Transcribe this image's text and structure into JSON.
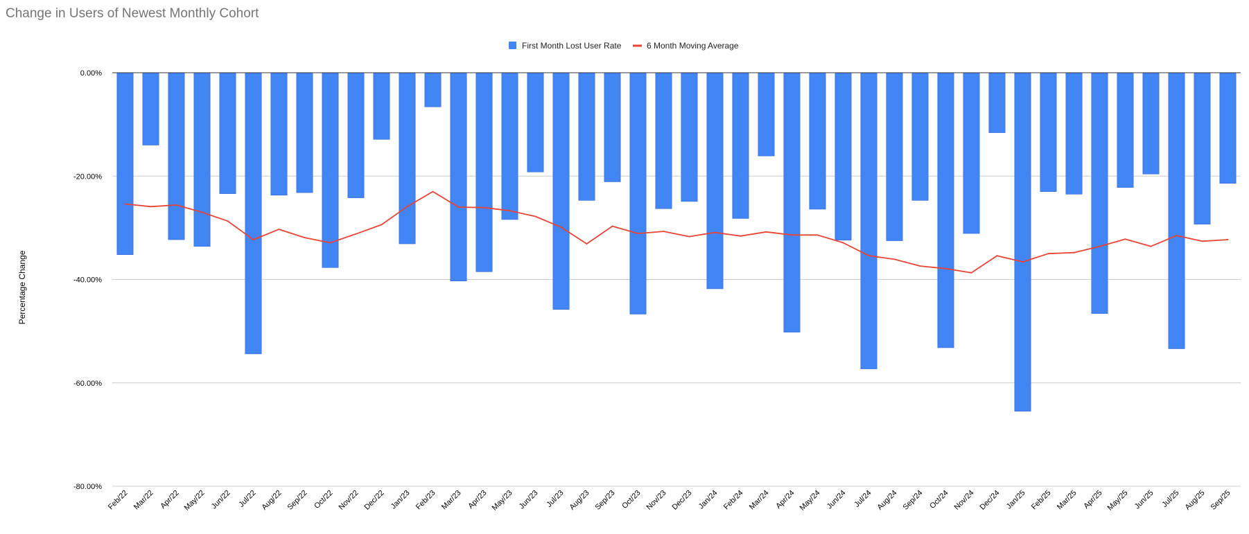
{
  "chart_data": {
    "type": "bar",
    "title": "Change in Users of Newest Monthly Cohort",
    "xlabel": "",
    "ylabel": "Percentage Change",
    "ylim": [
      -80,
      0
    ],
    "yticks": [
      0,
      -20,
      -40,
      -60,
      -80
    ],
    "ytick_labels": [
      "0.00%",
      "-20.00%",
      "-40.00%",
      "-60.00%",
      "-80.00%"
    ],
    "grid": true,
    "legend_position": "top-center",
    "categories": [
      "Feb/22",
      "Mar/22",
      "Apr/22",
      "May/22",
      "Jun/22",
      "Jul/22",
      "Aug/22",
      "Sep/22",
      "Oct/22",
      "Nov/22",
      "Dec/22",
      "Jan/23",
      "Feb/23",
      "Mar/23",
      "Apr/23",
      "May/23",
      "Jun/23",
      "Jul/23",
      "Aug/23",
      "Sep/23",
      "Oct/23",
      "Nov/23",
      "Dec/23",
      "Jan/24",
      "Feb/24",
      "Mar/24",
      "Apr/24",
      "May/24",
      "Jun/24",
      "Jul/24",
      "Aug/24",
      "Sep/24",
      "Oct/24",
      "Nov/24",
      "Dec/24",
      "Jan/25",
      "Feb/25",
      "Mar/25",
      "Apr/25",
      "May/25",
      "Jun/25",
      "Jul/25",
      "Aug/25",
      "Sep/25"
    ],
    "series": [
      {
        "name": "First Month Lost User Rate",
        "kind": "bar",
        "color": "#4285f4",
        "values": [
          -35.2,
          -14.0,
          -32.3,
          -33.6,
          -23.4,
          -54.4,
          -23.7,
          -23.2,
          -37.7,
          -24.2,
          -12.9,
          -33.1,
          -6.6,
          -40.3,
          -38.5,
          -28.4,
          -19.2,
          -45.8,
          -24.7,
          -21.1,
          -46.7,
          -26.3,
          -24.9,
          -41.8,
          -28.2,
          -16.1,
          -50.2,
          -26.4,
          -32.4,
          -57.3,
          -32.5,
          -24.7,
          -53.2,
          -31.1,
          -11.6,
          -65.5,
          -23.0,
          -23.5,
          -46.6,
          -22.2,
          -19.6,
          -53.4,
          -29.3,
          -21.4
        ]
      },
      {
        "name": "6 Month Moving Average",
        "kind": "line",
        "color": "#ea4335",
        "values": [
          -25.4,
          -25.9,
          -25.6,
          -27.0,
          -28.7,
          -32.3,
          -30.3,
          -31.9,
          -32.9,
          -31.2,
          -29.4,
          -25.9,
          -23.0,
          -26.0,
          -26.1,
          -26.7,
          -27.8,
          -29.9,
          -33.1,
          -29.7,
          -31.1,
          -30.7,
          -31.7,
          -30.9,
          -31.6,
          -30.8,
          -31.4,
          -31.4,
          -32.9,
          -35.4,
          -36.1,
          -37.4,
          -37.9,
          -38.7,
          -35.4,
          -36.6,
          -35.0,
          -34.8,
          -33.6,
          -32.2,
          -33.6,
          -31.5,
          -32.6,
          -32.3
        ]
      }
    ]
  }
}
